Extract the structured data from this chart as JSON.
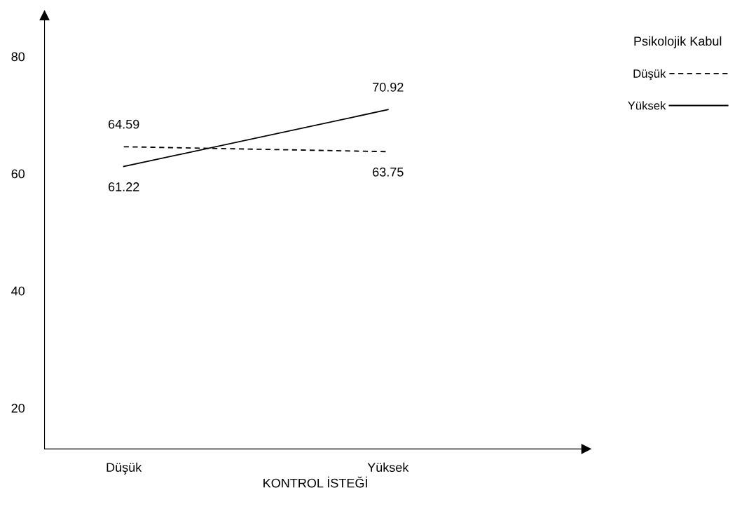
{
  "chart_data": {
    "type": "line",
    "xlabel": "KONTROL İSTEĞİ",
    "legend_title": "Psikolojik Kabul",
    "categories": [
      "Düşük",
      "Yüksek"
    ],
    "series": [
      {
        "name": "Düşük",
        "color": "#000000",
        "values": [
          64.59,
          63.75
        ],
        "line_style": "dashed"
      },
      {
        "name": "Yüksek",
        "color": "#000000",
        "values": [
          61.22,
          70.92
        ],
        "line_style": "solid"
      }
    ],
    "ylim": [
      13,
      87
    ],
    "yticks": [
      20,
      40,
      60,
      80
    ],
    "grid": false,
    "legend": "top right",
    "data_labels": true,
    "marker": "none"
  }
}
